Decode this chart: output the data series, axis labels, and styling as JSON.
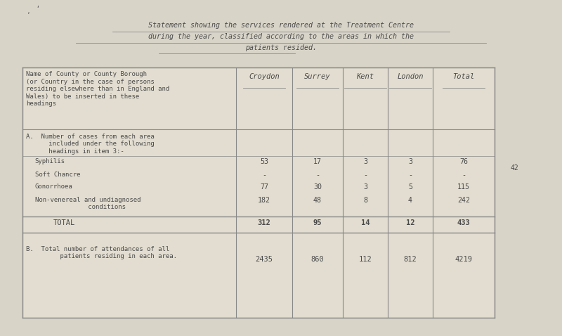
{
  "title_line1": "Statement showing the services rendered at the Treatment Centre",
  "title_line2": "during the year, classified according to the areas in which the",
  "title_line3": "patients resided.",
  "bg_color": "#d8d4c8",
  "table_bg": "#e2ddd0",
  "columns": [
    "Croydon",
    "Surrey",
    "Kent",
    "London",
    "Total"
  ],
  "header_text": "Name of County or County Borough\n(or Country in the case of persons\nresiding elsewhere than in England and\nWales) to be inserted in these\nheadings",
  "section_a_header": "A.  Number of cases from each area\n      included under the following\n      headings in item 3:-",
  "rows": [
    {
      "label": "Syphilis",
      "values": [
        "53",
        "17",
        "3",
        "3",
        "76"
      ]
    },
    {
      "label": "Soft Chancre",
      "values": [
        "-",
        "-",
        "-",
        "-",
        "-"
      ]
    },
    {
      "label": "Gonorrhoea",
      "values": [
        "77",
        "30",
        "3",
        "5",
        "115"
      ]
    },
    {
      "label": "Non-venereal and undiagnosed\n              conditions",
      "values": [
        "182",
        "48",
        "8",
        "4",
        "242"
      ]
    }
  ],
  "total_label": "TOTAL",
  "total_values": [
    "312",
    "95",
    "14",
    "12",
    "433"
  ],
  "section_b_header": "B.  Total number of attendances of all\n         patients residing in each area.",
  "section_b_values": [
    "2435",
    "860",
    "112",
    "812",
    "4219"
  ],
  "side_text": "42",
  "text_color": "#4a4a4a",
  "line_color": "#888888",
  "font_size": 7.5
}
